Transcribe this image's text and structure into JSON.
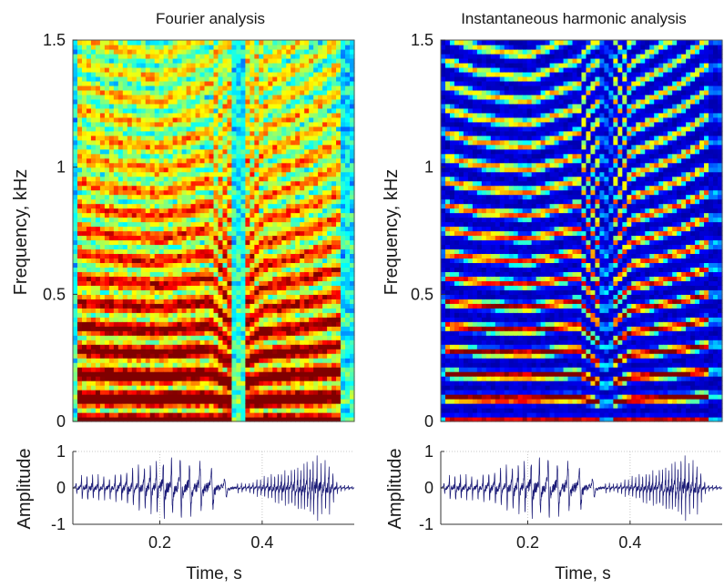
{
  "chart_data": [
    {
      "type": "heatmap",
      "title": "Fourier analysis",
      "ylabel": "Frequency, kHz",
      "xlabel": "",
      "xlim": [
        0.03,
        0.58
      ],
      "ylim": [
        0,
        1.5
      ],
      "yticks": [
        0,
        0.5,
        1,
        1.5
      ],
      "ytick_labels": [
        "0",
        "0.5",
        "1",
        "1.5"
      ],
      "colormap": "jet",
      "f0_hz": [
        [
          0.03,
          95
        ],
        [
          0.1,
          92
        ],
        [
          0.2,
          90
        ],
        [
          0.3,
          95
        ],
        [
          0.35,
          72
        ],
        [
          0.4,
          88
        ],
        [
          0.5,
          95
        ],
        [
          0.55,
          100
        ],
        [
          0.58,
          100
        ]
      ],
      "voiced_segments": [
        [
          0.04,
          0.34
        ],
        [
          0.37,
          0.55
        ]
      ],
      "harmonic_bandwidth": "wide"
    },
    {
      "type": "heatmap",
      "title": "Instantaneous harmonic analysis",
      "ylabel": "Frequency, kHz",
      "xlabel": "",
      "xlim": [
        0.03,
        0.58
      ],
      "ylim": [
        0,
        1.5
      ],
      "yticks": [
        0,
        0.5,
        1,
        1.5
      ],
      "ytick_labels": [
        "0",
        "0.5",
        "1",
        "1.5"
      ],
      "colormap": "jet",
      "f0_hz": [
        [
          0.03,
          95
        ],
        [
          0.1,
          92
        ],
        [
          0.2,
          90
        ],
        [
          0.3,
          95
        ],
        [
          0.35,
          72
        ],
        [
          0.4,
          88
        ],
        [
          0.5,
          95
        ],
        [
          0.55,
          100
        ],
        [
          0.58,
          100
        ]
      ],
      "voiced_segments": [
        [
          0.04,
          0.34
        ],
        [
          0.37,
          0.55
        ]
      ],
      "harmonic_bandwidth": "narrow"
    },
    {
      "type": "line",
      "title": "",
      "xlabel": "Time, s",
      "ylabel": "Amplitude",
      "xlim": [
        0.03,
        0.58
      ],
      "ylim": [
        -1,
        1
      ],
      "xticks": [
        0.2,
        0.4
      ],
      "xtick_labels": [
        "0.2",
        "0.4"
      ],
      "yticks": [
        -1,
        0,
        1
      ],
      "ytick_labels": [
        "-1",
        "0",
        "1"
      ],
      "grid": true,
      "color": "#1c1c78",
      "envelope": [
        [
          0.03,
          0.05
        ],
        [
          0.05,
          0.3
        ],
        [
          0.1,
          0.25
        ],
        [
          0.15,
          0.45
        ],
        [
          0.2,
          0.65
        ],
        [
          0.25,
          0.6
        ],
        [
          0.3,
          0.5
        ],
        [
          0.34,
          0.12
        ],
        [
          0.37,
          0.1
        ],
        [
          0.42,
          0.3
        ],
        [
          0.47,
          0.5
        ],
        [
          0.5,
          0.75
        ],
        [
          0.53,
          0.6
        ],
        [
          0.55,
          0.08
        ],
        [
          0.58,
          0.03
        ]
      ]
    },
    {
      "type": "line",
      "title": "",
      "xlabel": "Time, s",
      "ylabel": "Amplitude",
      "xlim": [
        0.03,
        0.58
      ],
      "ylim": [
        -1,
        1
      ],
      "xticks": [
        0.2,
        0.4
      ],
      "xtick_labels": [
        "0.2",
        "0.4"
      ],
      "yticks": [
        -1,
        0,
        1
      ],
      "ytick_labels": [
        "-1",
        "0",
        "1"
      ],
      "grid": true,
      "color": "#1c1c78",
      "envelope": [
        [
          0.03,
          0.05
        ],
        [
          0.05,
          0.3
        ],
        [
          0.1,
          0.25
        ],
        [
          0.15,
          0.45
        ],
        [
          0.2,
          0.65
        ],
        [
          0.25,
          0.6
        ],
        [
          0.3,
          0.5
        ],
        [
          0.34,
          0.12
        ],
        [
          0.37,
          0.1
        ],
        [
          0.42,
          0.3
        ],
        [
          0.47,
          0.5
        ],
        [
          0.5,
          0.75
        ],
        [
          0.53,
          0.6
        ],
        [
          0.55,
          0.08
        ],
        [
          0.58,
          0.03
        ]
      ]
    }
  ]
}
